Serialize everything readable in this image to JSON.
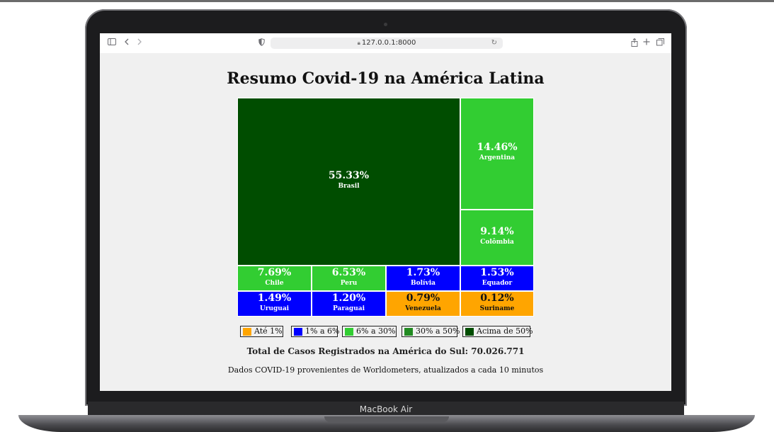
{
  "browser": {
    "url": "127.0.0.1:8000"
  },
  "page": {
    "title": "Resumo Covid-19 na América Latina",
    "total": "Total de Casos Registrados na América do Sul: 70.026.771",
    "source": "Dados COVID-19 provenientes de Worldometers, atualizados a cada 10 minutos"
  },
  "device": {
    "label": "MacBook Air"
  },
  "colors": {
    "ate1": "#ffa500",
    "de1a6": "#0000ff",
    "de6a30": "#32cd32",
    "de30a50": "#228b22",
    "acima50": "#004d00"
  },
  "chart_data": {
    "type": "treemap",
    "title": "Resumo Covid-19 na América Latina",
    "items": [
      {
        "name": "Brasil",
        "label": "55.33%",
        "value": 55.33,
        "category": "acima50"
      },
      {
        "name": "Argentina",
        "label": "14.46%",
        "value": 14.46,
        "category": "de6a30"
      },
      {
        "name": "Colômbia",
        "label": "9.14%",
        "value": 9.14,
        "category": "de6a30"
      },
      {
        "name": "Chile",
        "label": "7.69%",
        "value": 7.69,
        "category": "de6a30"
      },
      {
        "name": "Peru",
        "label": "6.53%",
        "value": 6.53,
        "category": "de6a30"
      },
      {
        "name": "Bolívia",
        "label": "1.73%",
        "value": 1.73,
        "category": "de1a6"
      },
      {
        "name": "Equador",
        "label": "1.53%",
        "value": 1.53,
        "category": "de1a6"
      },
      {
        "name": "Uruguai",
        "label": "1.49%",
        "value": 1.49,
        "category": "de1a6"
      },
      {
        "name": "Paraguai",
        "label": "1.20%",
        "value": 1.2,
        "category": "de1a6"
      },
      {
        "name": "Venezuela",
        "label": "0.79%",
        "value": 0.79,
        "category": "ate1"
      },
      {
        "name": "Suriname",
        "label": "0.12%",
        "value": 0.12,
        "category": "ate1"
      }
    ],
    "legend": [
      {
        "label": "Até 1%",
        "category": "ate1"
      },
      {
        "label": "1% a 6%",
        "category": "de1a6"
      },
      {
        "label": "6% a 30%",
        "category": "de6a30"
      },
      {
        "label": "30% a 50%",
        "category": "de30a50"
      },
      {
        "label": "Acima de 50%",
        "category": "acima50"
      }
    ]
  }
}
